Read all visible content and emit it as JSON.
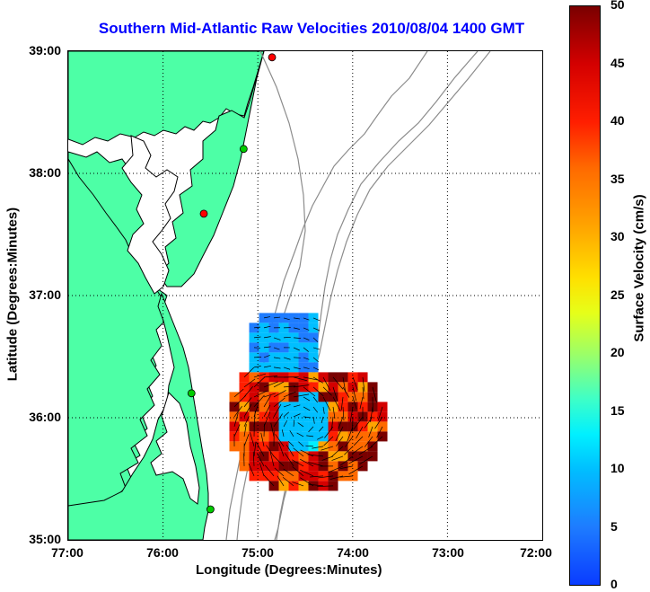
{
  "title": "Southern Mid-Atlantic Raw Velocities 2010/08/04 1400 GMT",
  "axes": {
    "xlabel": "Longitude (Degrees:Minutes)",
    "ylabel": "Latitude (Degrees:Minutes)",
    "xticks": [
      "77:00",
      "76:00",
      "75:00",
      "74:00",
      "73:00",
      "72:00"
    ],
    "yticks": [
      "39:00",
      "38:00",
      "37:00",
      "36:00",
      "35:00"
    ],
    "xlim": [
      -77,
      -72
    ],
    "ylim": [
      35,
      39
    ],
    "grid": "dotted"
  },
  "colorbar": {
    "label": "Surface Velocity (cm/s)",
    "ticks": [
      "50",
      "45",
      "40",
      "35",
      "30",
      "25",
      "20",
      "15",
      "10",
      "5",
      "0"
    ],
    "range": [
      0,
      50
    ]
  },
  "colors": {
    "land": "#4dffa6",
    "coastline": "#000000",
    "bathymetry": "#8c8c8c",
    "title": "#0000ff",
    "station_active": "#00cc00",
    "station_inactive": "#ff0000"
  },
  "stations": [
    {
      "lon": -74.85,
      "lat": 38.95,
      "status": "inactive"
    },
    {
      "lon": -75.15,
      "lat": 38.2,
      "status": "active"
    },
    {
      "lon": -75.57,
      "lat": 37.67,
      "status": "inactive"
    },
    {
      "lon": -75.7,
      "lat": 36.2,
      "status": "active"
    },
    {
      "lon": -75.5,
      "lat": 35.25,
      "status": "active"
    }
  ],
  "velocity_field": {
    "region": {
      "lon": [
        -75.3,
        -73.5
      ],
      "lat": [
        35.4,
        37.1
      ]
    },
    "units": "cm/s"
  }
}
